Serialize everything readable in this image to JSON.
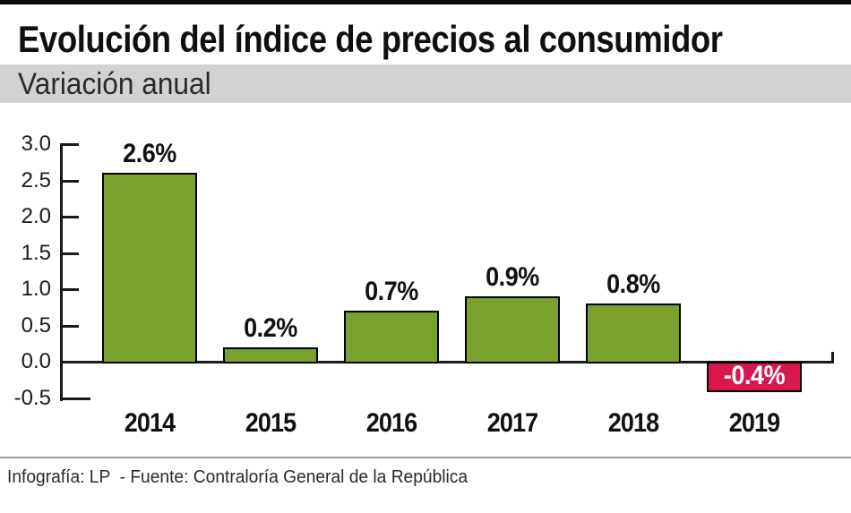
{
  "header": {
    "title": "Evolución del índice de precios al consumidor",
    "subtitle": "Variación anual"
  },
  "footer": {
    "credit": "Infografía: LP  - Fuente: Contraloría General de la República"
  },
  "colors": {
    "positive_bar": "#7aa12d",
    "negative_bar": "#d8174f",
    "bar_border": "#000000",
    "subtitle_band_bg": "#d2d2d4",
    "axis": "#1a1a1a",
    "top_rule": "#0a0a0a",
    "footer_rule": "#999999"
  },
  "chart_data": {
    "type": "bar",
    "title": "Evolución del índice de precios al consumidor",
    "subtitle": "Variación anual",
    "categories": [
      "2014",
      "2015",
      "2016",
      "2017",
      "2018",
      "2019"
    ],
    "values": [
      2.6,
      0.2,
      0.7,
      0.9,
      0.8,
      -0.4
    ],
    "bar_labels": [
      "2.6%",
      "0.2%",
      "0.7%",
      "0.9%",
      "0.8%",
      "-0.4%"
    ],
    "xlabel": "",
    "ylabel": "",
    "ylim": [
      -0.5,
      3.0
    ],
    "yticks": [
      3.0,
      2.5,
      2.0,
      1.5,
      1.0,
      0.5,
      0.0,
      -0.5
    ],
    "ytick_labels": [
      "3.0",
      "2.5",
      "2.0",
      "1.5",
      "1.0",
      "0.5",
      "0.0",
      "-0.5"
    ],
    "grid": false,
    "legend": "none",
    "positive_color": "#7aa12d",
    "negative_color": "#d8174f",
    "negative_label_inside_bar": true
  }
}
